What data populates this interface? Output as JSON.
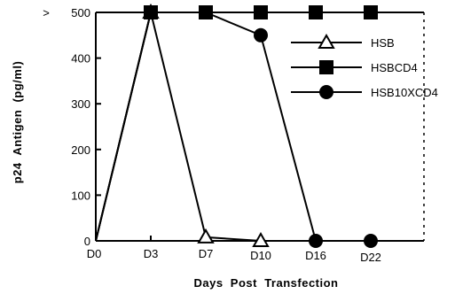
{
  "chart_data": {
    "type": "line",
    "title": "",
    "xlabel": "Days  Post  Transfection",
    "ylabel": "p24  Antigen  (pg/ml)",
    "categories": [
      "D0",
      "D3",
      "D7",
      "D10",
      "D16",
      "D22"
    ],
    "ylim": [
      0,
      500
    ],
    "yticks": [
      0,
      100,
      200,
      300,
      400,
      500
    ],
    "y_top_label": ">",
    "grid": false,
    "legend_position": "top-right",
    "series": [
      {
        "name": "HSB",
        "marker": "triangle",
        "values": [
          0,
          500,
          8,
          0,
          null,
          null
        ]
      },
      {
        "name": "HSBCD4",
        "marker": "square",
        "values": [
          0,
          500,
          500,
          500,
          500,
          500
        ]
      },
      {
        "name": "HSB10XCD4",
        "marker": "circle",
        "values": [
          0,
          500,
          500,
          450,
          0,
          0
        ]
      }
    ]
  }
}
